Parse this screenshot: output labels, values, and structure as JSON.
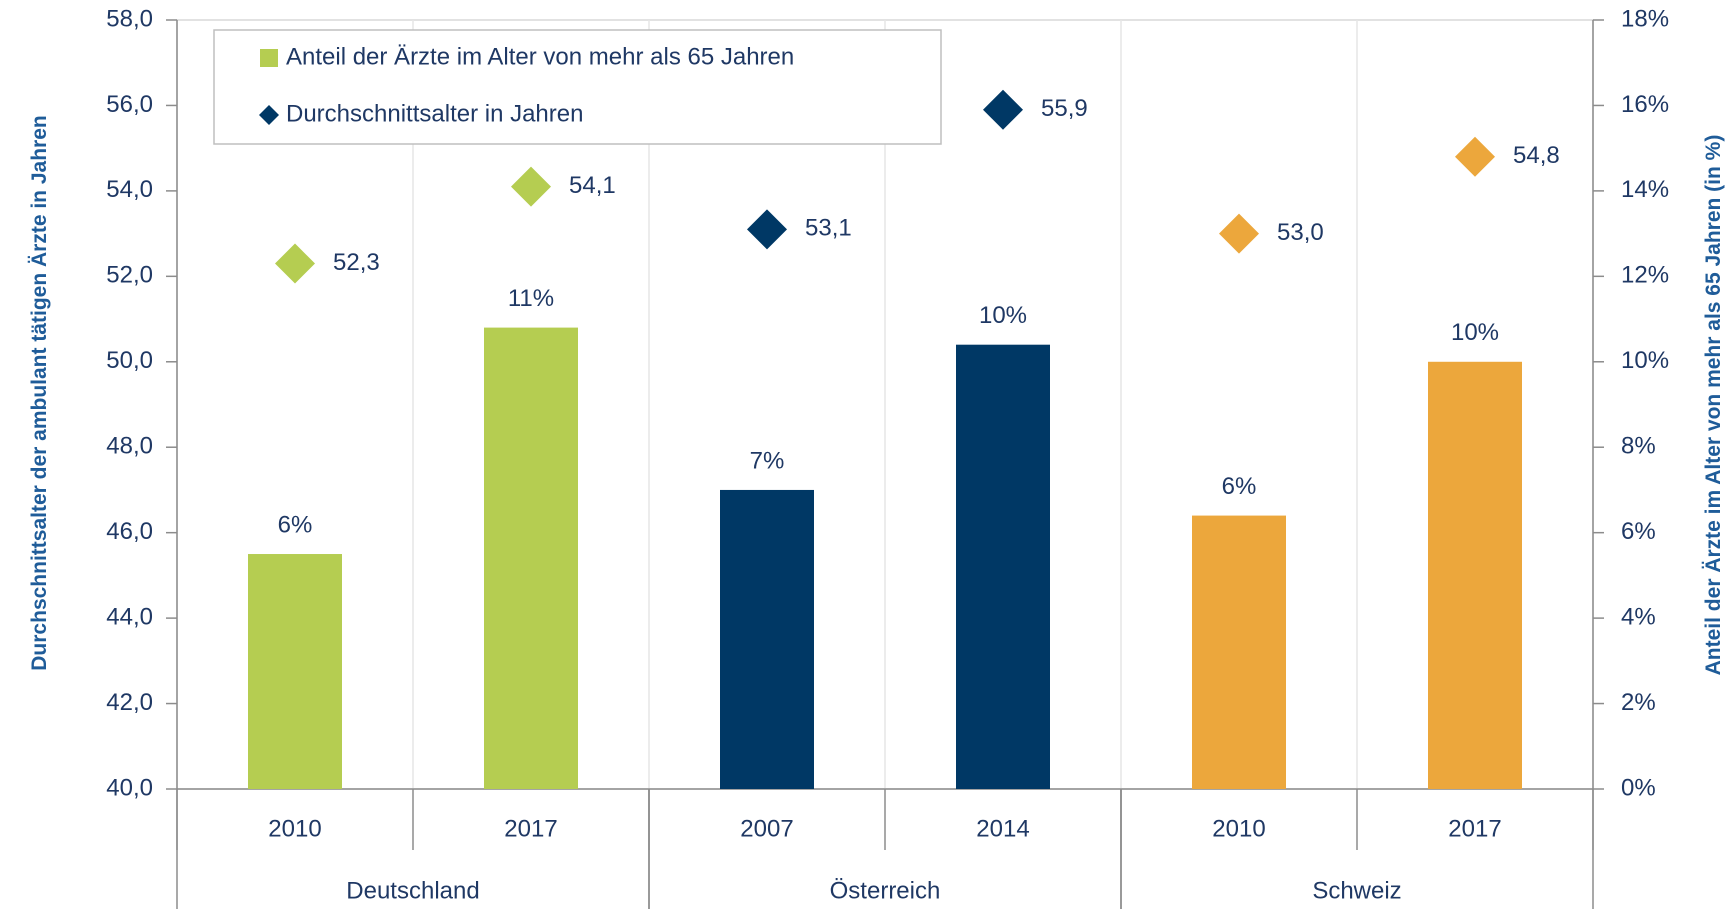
{
  "chart_data": {
    "type": "bar",
    "groups": [
      {
        "name": "Deutschland",
        "categories": [
          "2010",
          "2017"
        ]
      },
      {
        "name": "Österreich",
        "categories": [
          "2007",
          "2014"
        ]
      },
      {
        "name": "Schweiz",
        "categories": [
          "2010",
          "2017"
        ]
      }
    ],
    "series": [
      {
        "name": "Anteil der Ärzte im Alter von mehr als 65 Jahren",
        "type": "bar",
        "axis": "y2",
        "color": "#b5cd51",
        "colors": [
          "#b5cd51",
          "#b5cd51",
          "#003865",
          "#003865",
          "#eca73c",
          "#eca73c"
        ],
        "values": [
          5.5,
          10.8,
          7.0,
          10.4,
          6.4,
          10.0
        ],
        "value_labels": [
          "6%",
          "11%",
          "7%",
          "10%",
          "6%",
          "10%"
        ]
      },
      {
        "name": "Durchschnittsalter in Jahren",
        "type": "scatter",
        "axis": "y",
        "color": "#003865",
        "colors": [
          "#b5cd51",
          "#b5cd51",
          "#003865",
          "#003865",
          "#eca73c",
          "#eca73c"
        ],
        "values": [
          52.3,
          54.1,
          53.1,
          55.9,
          53.0,
          54.8
        ],
        "value_labels": [
          "52,3",
          "54,1",
          "53,1",
          "55,9",
          "53,0",
          "54,8"
        ]
      }
    ],
    "ylabel": "Durchschnittsalter der ambulant tätigen Ärzte in Jahren",
    "y2label": "Anteil der Ärzte im Alter von mehr als 65 Jahren (in %)",
    "ylim": [
      40,
      58
    ],
    "yticks": [
      {
        "value": 40,
        "label": "40,0"
      },
      {
        "value": 42,
        "label": "42,0"
      },
      {
        "value": 44,
        "label": "44,0"
      },
      {
        "value": 46,
        "label": "46,0"
      },
      {
        "value": 48,
        "label": "48,0"
      },
      {
        "value": 50,
        "label": "50,0"
      },
      {
        "value": 52,
        "label": "52,0"
      },
      {
        "value": 54,
        "label": "54,0"
      },
      {
        "value": 56,
        "label": "56,0"
      },
      {
        "value": 58,
        "label": "58,0"
      }
    ],
    "y2lim": [
      0,
      18
    ],
    "y2ticks": [
      {
        "value": 0,
        "label": "0%"
      },
      {
        "value": 2,
        "label": "2%"
      },
      {
        "value": 4,
        "label": "4%"
      },
      {
        "value": 6,
        "label": "6%"
      },
      {
        "value": 8,
        "label": "8%"
      },
      {
        "value": 10,
        "label": "10%"
      },
      {
        "value": 12,
        "label": "12%"
      },
      {
        "value": 14,
        "label": "14%"
      },
      {
        "value": 16,
        "label": "16%"
      },
      {
        "value": 18,
        "label": "18%"
      }
    ],
    "legend": "upper left"
  }
}
